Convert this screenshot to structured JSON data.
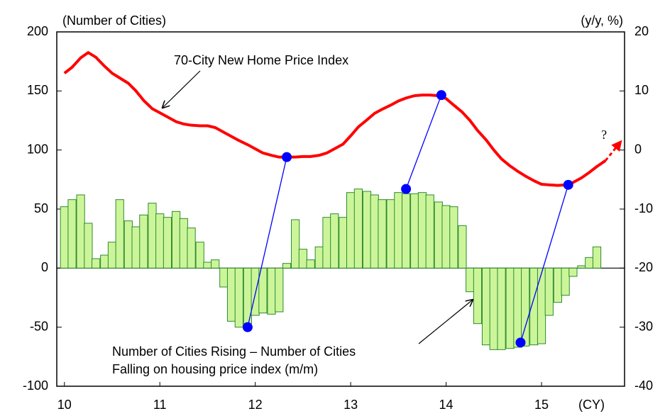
{
  "chart_data": {
    "type": "combo",
    "y_label": "(Number of Cities)",
    "y2_label": "(y/y, %)",
    "x_unit": "(CY)",
    "xlim": [
      9.92,
      15.87
    ],
    "xticks": [
      10,
      11,
      12,
      13,
      14,
      15
    ],
    "ylim": [
      -100,
      200
    ],
    "yticks": [
      200,
      150,
      100,
      50,
      0,
      -50,
      -100
    ],
    "y2lim": [
      -40,
      20
    ],
    "y2ticks": [
      20,
      10,
      0,
      -10,
      -20,
      -30,
      -40
    ],
    "x": [
      10,
      10.08,
      10.17,
      10.25,
      10.33,
      10.42,
      10.5,
      10.58,
      10.67,
      10.75,
      10.83,
      10.92,
      11,
      11.08,
      11.17,
      11.25,
      11.33,
      11.42,
      11.5,
      11.58,
      11.67,
      11.75,
      11.83,
      11.92,
      12,
      12.08,
      12.17,
      12.25,
      12.33,
      12.42,
      12.5,
      12.58,
      12.67,
      12.75,
      12.83,
      12.92,
      13,
      13.08,
      13.17,
      13.25,
      13.33,
      13.42,
      13.5,
      13.58,
      13.67,
      13.75,
      13.83,
      13.92,
      14,
      14.08,
      14.17,
      14.25,
      14.33,
      14.42,
      14.5,
      14.58,
      14.67,
      14.75,
      14.83,
      14.92,
      15,
      15.08,
      15.17,
      15.25,
      15.33,
      15.42,
      15.5,
      15.58,
      15.67
    ],
    "series": [
      {
        "name": "Number of Cities Rising – Number of Cities",
        "name2": "Falling on housing price index (m/m)",
        "type": "bar",
        "color": "#ccf59a",
        "stroke": "#2e8b2e",
        "values": [
          52,
          58,
          62,
          38,
          8,
          11,
          22,
          58,
          40,
          35,
          45,
          55,
          46,
          43,
          48,
          42,
          34,
          22,
          5,
          7,
          -16,
          -45,
          -50,
          -47,
          -40,
          -38,
          -39,
          -37,
          4,
          41,
          16,
          7,
          18,
          43,
          46,
          43,
          64,
          67,
          65,
          62,
          58,
          58,
          64,
          63,
          63,
          64,
          62,
          56,
          53,
          52,
          36,
          -20,
          -47,
          -65,
          -69,
          -69,
          -68,
          -67,
          -66,
          -65,
          -64,
          -40,
          -29,
          -23,
          -7,
          2,
          9,
          18,
          null
        ]
      },
      {
        "name": "70-City New Home Price Index",
        "type": "line",
        "axis": "y2",
        "color": "#ff0000",
        "values": [
          13.0,
          14.0,
          15.6,
          16.5,
          15.7,
          14.2,
          13.0,
          12.2,
          11.3,
          10.0,
          8.4,
          7.0,
          6.3,
          5.6,
          4.8,
          4.4,
          4.2,
          4.1,
          4.1,
          3.8,
          3.0,
          2.3,
          1.6,
          0.9,
          0.2,
          -0.5,
          -0.9,
          -1.2,
          -1.2,
          -1.2,
          -1.1,
          -1.1,
          -0.9,
          -0.5,
          0.2,
          1.0,
          2.4,
          3.9,
          5.1,
          6.2,
          6.9,
          7.6,
          8.3,
          8.8,
          9.2,
          9.3,
          9.3,
          9.2,
          8.7,
          7.6,
          6.4,
          5.0,
          3.3,
          1.7,
          0.0,
          -1.5,
          -2.7,
          -3.6,
          -4.4,
          -5.2,
          -5.8,
          -5.9,
          -6.0,
          -5.9,
          -5.5,
          -4.7,
          -3.8,
          -2.8,
          -1.8
        ]
      }
    ],
    "projection": {
      "label": "?",
      "x": [
        15.67,
        15.83
      ],
      "values": [
        -1.8,
        1.4
      ],
      "color": "#ff0000"
    },
    "links": [
      {
        "x": [
          11.92,
          12.33
        ],
        "values": [
          -50,
          -1.2
        ]
      },
      {
        "x": [
          13.58,
          13.95
        ],
        "values": [
          67,
          9.3
        ]
      },
      {
        "x": [
          14.78,
          15.28
        ],
        "values": [
          -63,
          -5.9
        ]
      }
    ],
    "link_color": "#0000ff"
  }
}
